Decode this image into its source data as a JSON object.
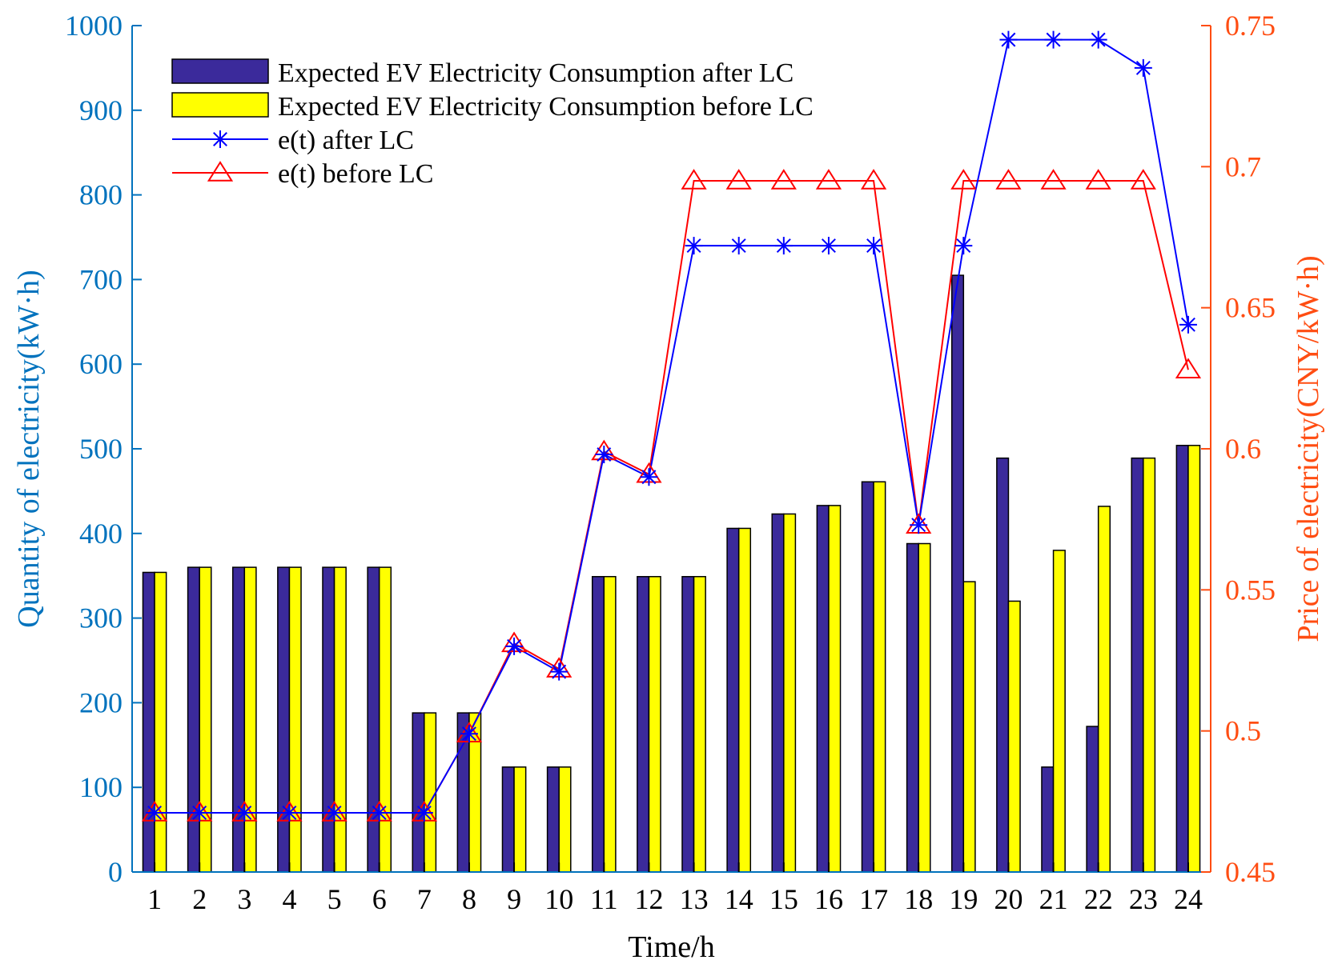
{
  "chart_data": {
    "type": "bar+line",
    "title": "",
    "xlabel": "Time/h",
    "ylabel_left": "Quantity of electricity(kW·h)",
    "ylabel_right": "Price of electricity(CNY/kW·h)",
    "categories": [
      "1",
      "2",
      "3",
      "4",
      "5",
      "6",
      "7",
      "8",
      "9",
      "10",
      "11",
      "12",
      "13",
      "14",
      "15",
      "16",
      "17",
      "18",
      "19",
      "20",
      "21",
      "22",
      "23",
      "24"
    ],
    "ylim_left": [
      0,
      1000
    ],
    "yticks_left": [
      "0",
      "100",
      "200",
      "300",
      "400",
      "500",
      "600",
      "700",
      "800",
      "900",
      "1000"
    ],
    "ylim_right": [
      0.45,
      0.75
    ],
    "yticks_right": [
      "0.45",
      "0.5",
      "0.55",
      "0.6",
      "0.65",
      "0.7",
      "0.75"
    ],
    "grid": false,
    "legend_position": "top-left",
    "bar_series": [
      {
        "name": "Expected EV Electricity Consumption after LC",
        "color": "#3B2A9B",
        "axis": "left",
        "values": [
          354,
          360,
          360,
          360,
          360,
          360,
          188,
          188,
          124,
          124,
          349,
          349,
          349,
          406,
          423,
          433,
          461,
          388,
          705,
          489,
          124,
          172,
          489,
          504
        ]
      },
      {
        "name": "Expected EV Electricity Consumption before LC",
        "color": "#FFFF00",
        "axis": "left",
        "values": [
          354,
          360,
          360,
          360,
          360,
          360,
          188,
          188,
          124,
          124,
          349,
          349,
          349,
          406,
          423,
          433,
          461,
          388,
          343,
          320,
          380,
          432,
          489,
          504
        ]
      }
    ],
    "line_series": [
      {
        "name": "e(t) after LC",
        "color": "#0000FF",
        "marker": "asterisk",
        "axis": "right",
        "values": [
          0.471,
          0.471,
          0.471,
          0.471,
          0.471,
          0.471,
          0.471,
          0.499,
          0.53,
          0.521,
          0.598,
          0.59,
          0.672,
          0.672,
          0.672,
          0.672,
          0.672,
          0.573,
          0.672,
          0.745,
          0.745,
          0.745,
          0.735,
          0.644
        ]
      },
      {
        "name": "e(t) before LC",
        "color": "#FF0000",
        "marker": "triangle",
        "axis": "right",
        "values": [
          0.471,
          0.471,
          0.471,
          0.471,
          0.471,
          0.471,
          0.471,
          0.499,
          0.531,
          0.522,
          0.599,
          0.591,
          0.695,
          0.695,
          0.695,
          0.695,
          0.695,
          0.573,
          0.695,
          0.695,
          0.695,
          0.695,
          0.695,
          0.628
        ]
      }
    ]
  },
  "colors": {
    "left_axis": "#0072BD",
    "right_axis": "#FF4D12",
    "x_axis": "#000000"
  }
}
